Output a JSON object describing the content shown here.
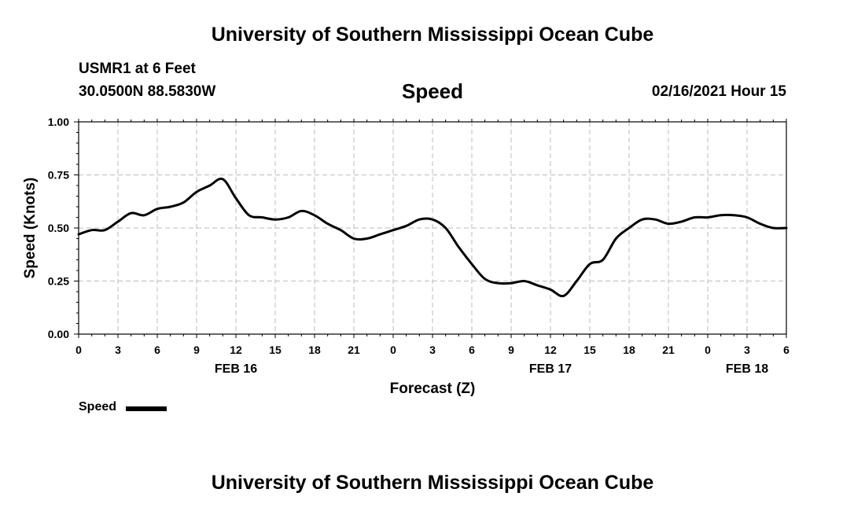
{
  "header": {
    "title": "University of Southern Mississippi Ocean Cube",
    "station": "USMR1 at 6 Feet",
    "coords": "30.0500N 88.5830W",
    "timestamp": "02/16/2021 Hour 15"
  },
  "footer": {
    "title": "University of Southern Mississippi Ocean Cube"
  },
  "colors": {
    "line": "#000000",
    "grid": "#bbbbbb"
  },
  "chart_data": {
    "type": "line",
    "title": "Speed",
    "xlabel": "Forecast (Z)",
    "ylabel": "Speed (Knots)",
    "ylim": [
      0,
      1
    ],
    "yticks": [
      "0.00",
      "0.25",
      "0.50",
      "0.75",
      "1.00"
    ],
    "xlim_hours": [
      0,
      54
    ],
    "xtick_labels": [
      "0",
      "3",
      "6",
      "9",
      "12",
      "15",
      "18",
      "21",
      "0",
      "3",
      "6",
      "9",
      "12",
      "15",
      "18",
      "21",
      "0",
      "3",
      "6"
    ],
    "date_labels": [
      {
        "hour": 12,
        "label": "FEB 16"
      },
      {
        "hour": 36,
        "label": "FEB 17"
      },
      {
        "hour": 51,
        "label": "FEB 18"
      }
    ],
    "legend": "Speed",
    "series": [
      {
        "name": "Speed",
        "x": [
          0,
          1,
          2,
          3,
          4,
          5,
          6,
          7,
          8,
          9,
          10,
          11,
          12,
          13,
          14,
          15,
          16,
          17,
          18,
          19,
          20,
          21,
          22,
          23,
          24,
          25,
          26,
          27,
          28,
          29,
          30,
          31,
          32,
          33,
          34,
          35,
          36,
          37,
          38,
          39,
          40,
          41,
          42,
          43,
          44,
          45,
          46,
          47,
          48,
          49,
          50,
          51,
          52,
          53,
          54
        ],
        "values": [
          0.47,
          0.49,
          0.49,
          0.53,
          0.57,
          0.56,
          0.59,
          0.6,
          0.62,
          0.67,
          0.7,
          0.73,
          0.64,
          0.56,
          0.55,
          0.54,
          0.55,
          0.58,
          0.56,
          0.52,
          0.49,
          0.45,
          0.45,
          0.47,
          0.49,
          0.51,
          0.54,
          0.54,
          0.5,
          0.41,
          0.33,
          0.26,
          0.24,
          0.24,
          0.25,
          0.23,
          0.21,
          0.18,
          0.25,
          0.33,
          0.35,
          0.45,
          0.5,
          0.54,
          0.54,
          0.52,
          0.53,
          0.55,
          0.55,
          0.56,
          0.56,
          0.55,
          0.52,
          0.5,
          0.5
        ]
      }
    ]
  }
}
